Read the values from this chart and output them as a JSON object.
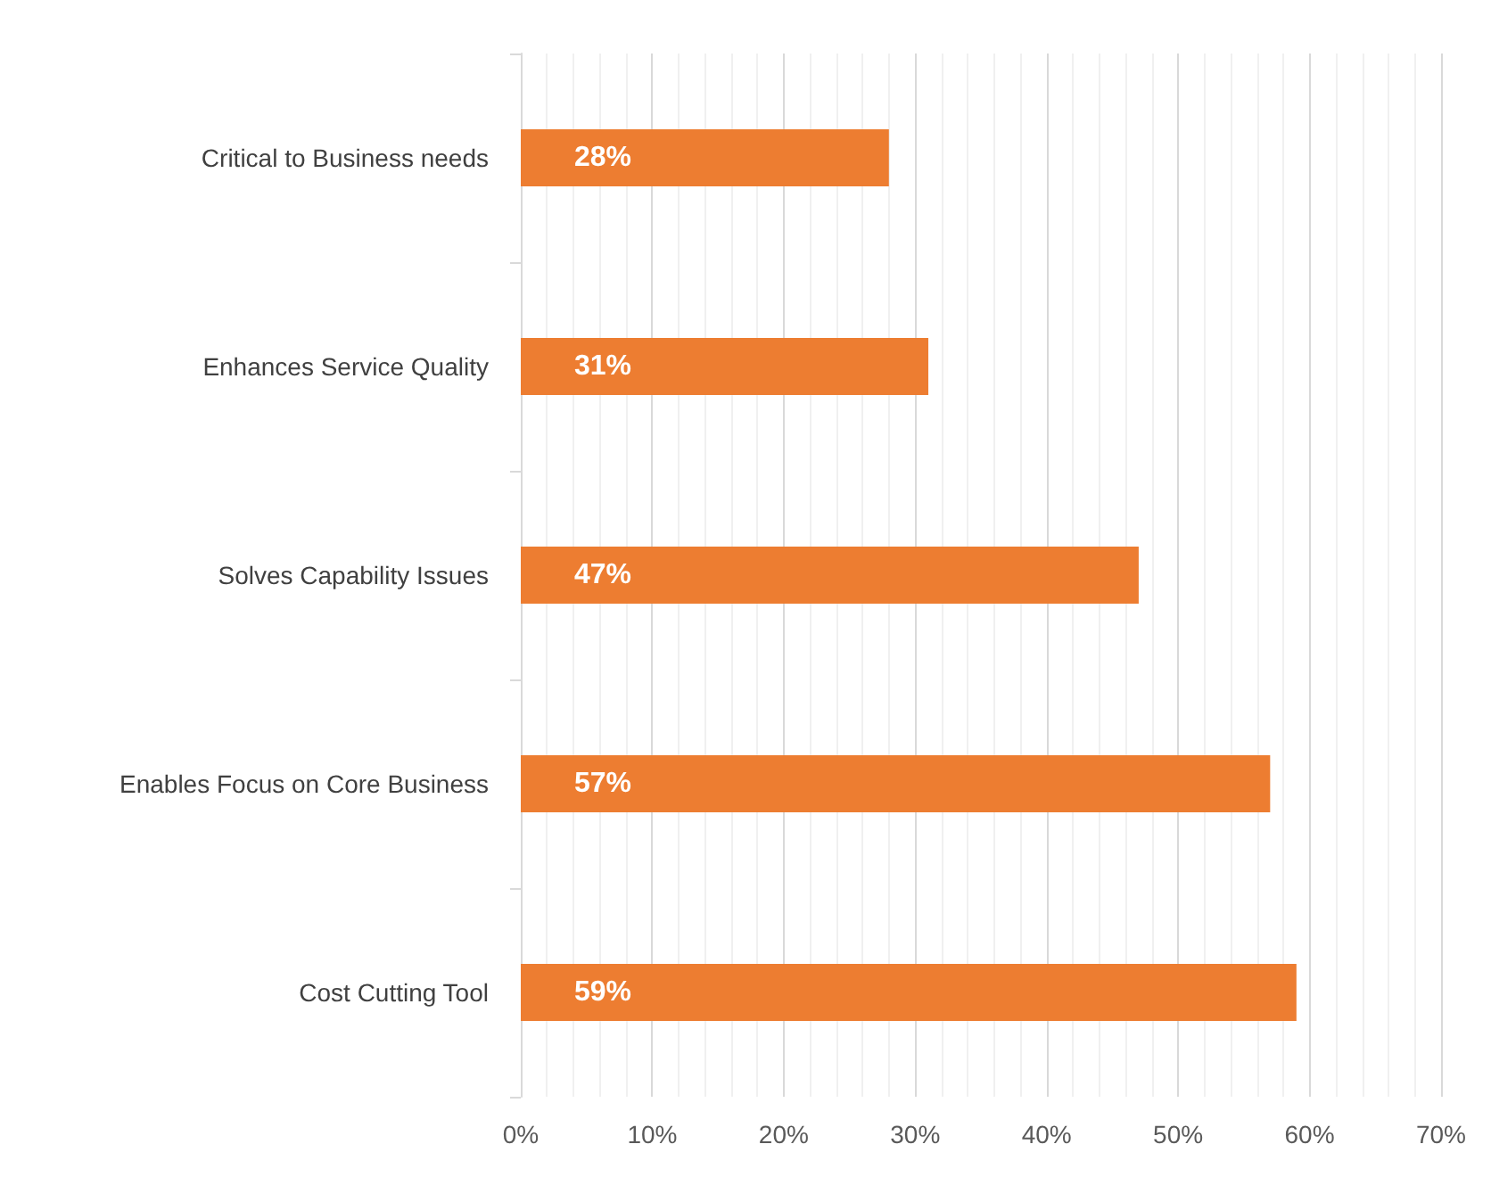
{
  "chart_data": {
    "type": "bar",
    "orientation": "horizontal",
    "categories": [
      "Critical to Business needs",
      "Enhances Service Quality",
      "Solves Capability Issues",
      "Enables Focus on Core Business",
      "Cost Cutting Tool"
    ],
    "values": [
      28,
      31,
      47,
      57,
      59
    ],
    "value_labels": [
      "28%",
      "31%",
      "47%",
      "57%",
      "59%"
    ],
    "color": "#ed7d31",
    "xlim": [
      0,
      70
    ],
    "xticks": [
      {
        "value": 0,
        "label": "0%"
      },
      {
        "value": 10,
        "label": "10%"
      },
      {
        "value": 20,
        "label": "20%"
      },
      {
        "value": 30,
        "label": "30%"
      },
      {
        "value": 40,
        "label": "40%"
      },
      {
        "value": 50,
        "label": "50%"
      },
      {
        "value": 60,
        "label": "60%"
      },
      {
        "value": 70,
        "label": "70%"
      }
    ],
    "grid": true
  }
}
